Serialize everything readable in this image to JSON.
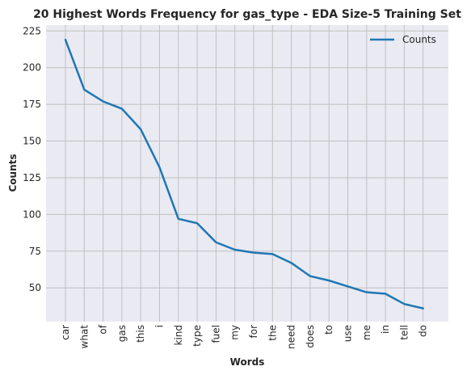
{
  "chart_data": {
    "type": "line",
    "title": "20 Highest Words Frequency for gas_type - EDA Size-5 Training Set",
    "xlabel": "Words",
    "ylabel": "Counts",
    "categories": [
      "car",
      "what",
      "of",
      "gas",
      "this",
      "i",
      "kind",
      "type",
      "fuel",
      "my",
      "for",
      "the",
      "need",
      "does",
      "to",
      "use",
      "me",
      "in",
      "tell",
      "do"
    ],
    "series": [
      {
        "name": "Counts",
        "values": [
          219,
          185,
          177,
          172,
          158,
          132,
          97,
          94,
          81,
          76,
          74,
          73,
          67,
          58,
          55,
          51,
          47,
          46,
          39,
          36
        ]
      }
    ],
    "ylim": [
      27,
      229
    ],
    "yticks": [
      50,
      75,
      100,
      125,
      150,
      175,
      200,
      225
    ],
    "grid": true,
    "legend_position": "top-right",
    "line_color": "#1f77b4",
    "background_color": "#eaeaf2",
    "grid_color": "#c0c0c0"
  }
}
